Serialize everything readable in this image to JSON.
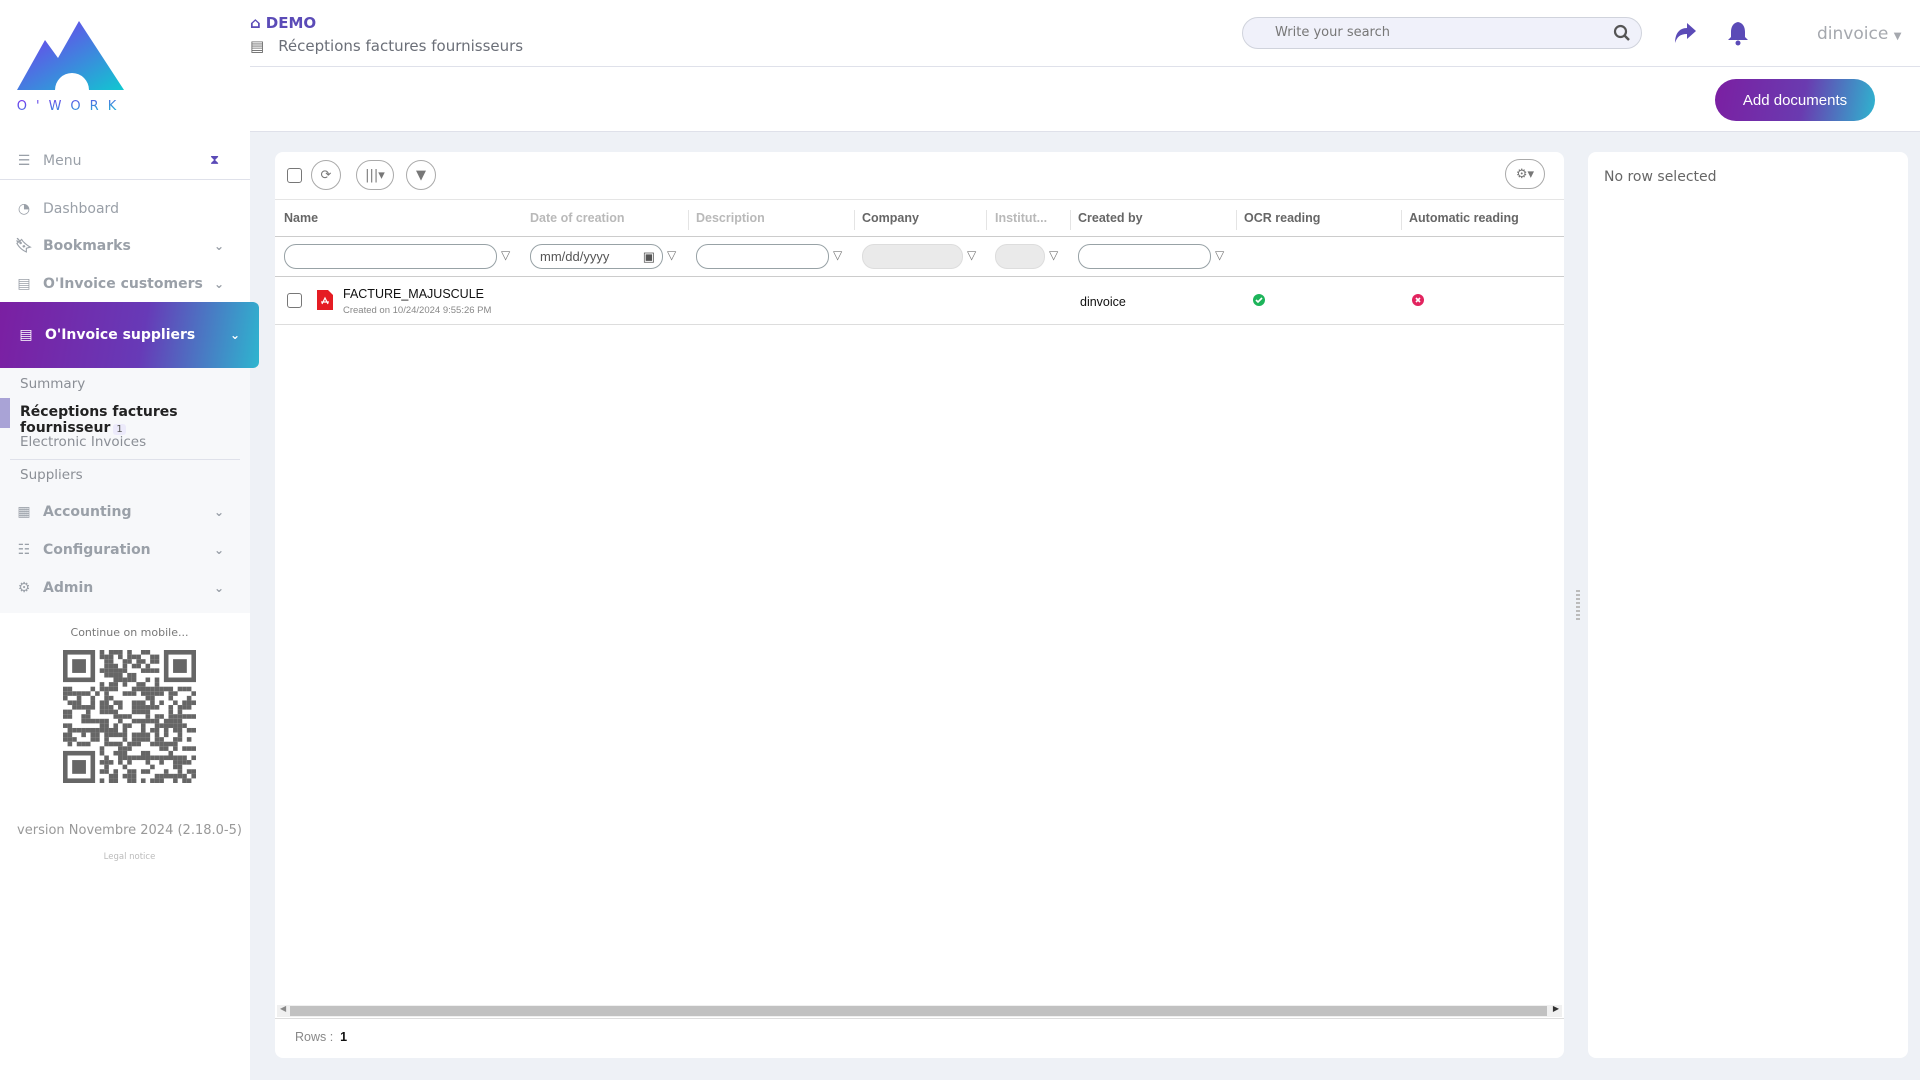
{
  "brand": {
    "logo_text": "O'WORK"
  },
  "header": {
    "workspace": "DEMO",
    "breadcrumb": "Réceptions factures fournisseurs",
    "search_placeholder": "Write your search",
    "user": "dinvoice",
    "add_documents": "Add documents"
  },
  "sidebar": {
    "menu_label": "Menu",
    "items": [
      {
        "label": "Dashboard"
      },
      {
        "label": "Bookmarks"
      },
      {
        "label": "O'Invoice customers"
      },
      {
        "label": "O'Invoice suppliers"
      },
      {
        "label": "Accounting"
      },
      {
        "label": "Configuration"
      },
      {
        "label": "Admin"
      }
    ],
    "subitems": [
      {
        "label": "Summary"
      },
      {
        "label": "Réceptions factures fournisseur",
        "badge": "1"
      },
      {
        "label": "Electronic Invoices"
      },
      {
        "label": "Suppliers"
      }
    ],
    "mobile_label": "Continue on mobile...",
    "version": "version Novembre 2024 (2.18.0-5)",
    "legal": "Legal notice"
  },
  "grid": {
    "columns": [
      "Name",
      "Date of creation",
      "Description",
      "Company",
      "Institut...",
      "Created by",
      "OCR reading",
      "Automatic reading"
    ],
    "date_placeholder": "mm/dd/yyyy",
    "rows": [
      {
        "name": "FACTURE_MAJUSCULE",
        "created": "Created on 10/24/2024 9:55:26 PM",
        "created_by": "dinvoice",
        "ocr": "success",
        "automatic": "error"
      }
    ],
    "rows_label": "Rows :",
    "rows_count": "1"
  },
  "panel": {
    "empty": "No row selected"
  },
  "colors": {
    "accent": "#5b4bb7",
    "gradient_start": "#7b1fa2",
    "gradient_end": "#2eb5cf",
    "success": "#1db45a",
    "error": "#e2245f",
    "pdf": "#e51c23"
  }
}
